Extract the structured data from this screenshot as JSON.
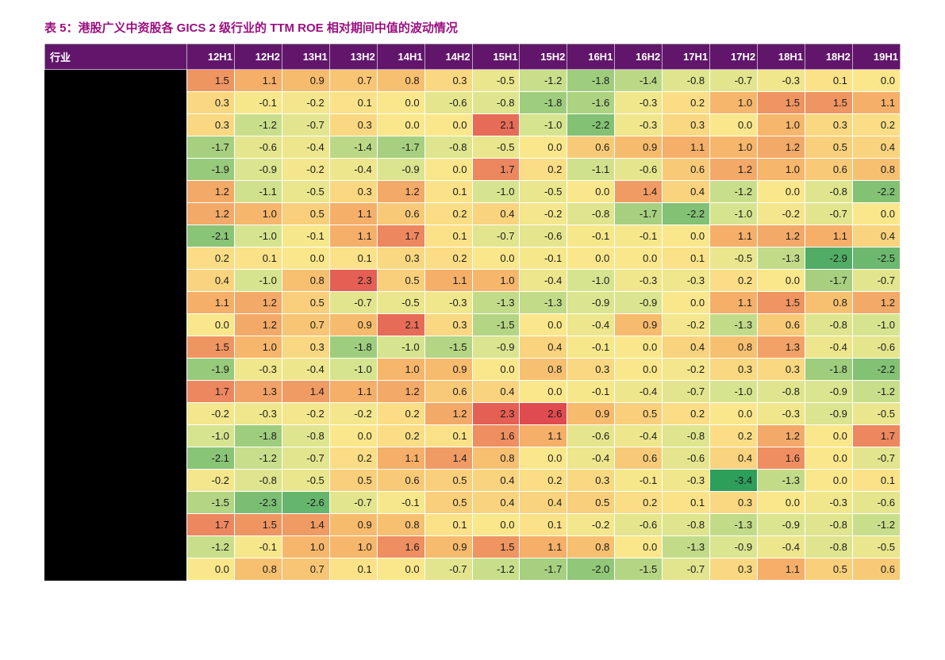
{
  "title": "表 5：港股广义中资股各 GICS 2 级行业的 TTM ROE 相对期间中值的波动情况",
  "row_header": "行业",
  "columns": [
    "12H1",
    "12H2",
    "13H1",
    "13H2",
    "14H1",
    "14H2",
    "15H1",
    "15H2",
    "16H1",
    "16H2",
    "17H1",
    "17H2",
    "18H1",
    "18H2",
    "19H1"
  ],
  "rows": [
    [
      1.5,
      1.1,
      0.9,
      0.7,
      0.8,
      0.3,
      -0.5,
      -1.2,
      -1.8,
      -1.4,
      -0.8,
      -0.7,
      -0.3,
      0.1,
      0.0
    ],
    [
      0.3,
      -0.1,
      -0.2,
      0.1,
      0.0,
      -0.6,
      -0.8,
      -1.8,
      -1.6,
      -0.3,
      0.2,
      1.0,
      1.5,
      1.5,
      1.1
    ],
    [
      0.3,
      -1.2,
      -0.7,
      0.3,
      0.0,
      0.0,
      2.1,
      -1.0,
      -2.2,
      -0.3,
      0.3,
      0.0,
      1.0,
      0.3,
      0.2
    ],
    [
      -1.7,
      -0.6,
      -0.4,
      -1.4,
      -1.7,
      -0.8,
      -0.5,
      0.0,
      0.6,
      0.9,
      1.1,
      1.0,
      1.2,
      0.5,
      0.4
    ],
    [
      -1.9,
      -0.9,
      -0.2,
      -0.4,
      -0.9,
      0.0,
      1.7,
      0.2,
      -1.1,
      -0.6,
      0.6,
      1.2,
      1.0,
      0.6,
      0.8
    ],
    [
      1.2,
      -1.1,
      -0.5,
      0.3,
      1.2,
      0.1,
      -1.0,
      -0.5,
      0.0,
      1.4,
      0.4,
      -1.2,
      0.0,
      -0.8,
      -2.2
    ],
    [
      1.2,
      1.0,
      0.5,
      1.1,
      0.6,
      0.2,
      0.4,
      -0.2,
      -0.8,
      -1.7,
      -2.2,
      -1.0,
      -0.2,
      -0.7,
      0.0
    ],
    [
      -2.1,
      -1.0,
      -0.1,
      1.1,
      1.7,
      0.1,
      -0.7,
      -0.6,
      -0.1,
      -0.1,
      0.0,
      1.1,
      1.2,
      1.1,
      0.4
    ],
    [
      0.2,
      0.1,
      0.0,
      0.1,
      0.3,
      0.2,
      0.0,
      -0.1,
      0.0,
      0.0,
      0.1,
      -0.5,
      -1.3,
      -2.9,
      -2.5
    ],
    [
      0.4,
      -1.0,
      0.8,
      2.3,
      0.5,
      1.1,
      1.0,
      -0.4,
      -1.0,
      -0.3,
      -0.3,
      0.2,
      0.0,
      -1.7,
      -0.7
    ],
    [
      1.1,
      1.2,
      0.5,
      -0.7,
      -0.5,
      -0.3,
      -1.3,
      -1.3,
      -0.9,
      -0.9,
      0.0,
      1.1,
      1.5,
      0.8,
      1.2
    ],
    [
      0.0,
      1.2,
      0.7,
      0.9,
      2.1,
      0.3,
      -1.5,
      0.0,
      -0.4,
      0.9,
      -0.2,
      -1.3,
      0.6,
      -0.8,
      -1.0
    ],
    [
      1.5,
      1.0,
      0.3,
      -1.8,
      -1.0,
      -1.5,
      -0.9,
      0.4,
      -0.1,
      0.0,
      0.4,
      0.8,
      1.3,
      -0.4,
      -0.6
    ],
    [
      -1.9,
      -0.3,
      -0.4,
      -1.0,
      1.0,
      0.9,
      0.0,
      0.8,
      0.3,
      0.0,
      -0.2,
      0.3,
      0.3,
      -1.8,
      -2.2
    ],
    [
      1.7,
      1.3,
      1.4,
      1.1,
      1.2,
      0.6,
      0.4,
      0.0,
      -0.1,
      -0.4,
      -0.7,
      -1.0,
      -0.8,
      -0.9,
      -1.2
    ],
    [
      -0.2,
      -0.3,
      -0.2,
      -0.2,
      0.2,
      1.2,
      2.3,
      2.6,
      0.9,
      0.5,
      0.2,
      0.0,
      -0.3,
      -0.9,
      -0.5
    ],
    [
      -1.0,
      -1.8,
      -0.8,
      0.0,
      0.2,
      0.1,
      1.6,
      1.1,
      -0.6,
      -0.4,
      -0.8,
      0.2,
      1.2,
      0.0,
      1.7
    ],
    [
      -2.1,
      -1.2,
      -0.7,
      0.2,
      1.1,
      1.4,
      0.8,
      0.0,
      -0.4,
      0.6,
      -0.6,
      0.4,
      1.6,
      0.0,
      -0.7
    ],
    [
      -0.2,
      -0.8,
      -0.5,
      0.5,
      0.6,
      0.5,
      0.4,
      0.2,
      0.3,
      -0.1,
      -0.3,
      -3.4,
      -1.3,
      0.0,
      0.1
    ],
    [
      -1.5,
      -2.3,
      -2.6,
      -0.7,
      -0.1,
      0.5,
      0.4,
      0.4,
      0.5,
      0.2,
      0.1,
      0.3,
      0.0,
      -0.3,
      -0.6
    ],
    [
      1.7,
      1.5,
      1.4,
      0.9,
      0.8,
      0.1,
      0.0,
      0.1,
      -0.2,
      -0.6,
      -0.8,
      -1.3,
      -0.9,
      -0.8,
      -1.2
    ],
    [
      -1.2,
      -0.1,
      1.0,
      1.0,
      1.6,
      0.9,
      1.5,
      1.1,
      0.8,
      0.0,
      -1.3,
      -0.9,
      -0.4,
      -0.8,
      -0.5
    ],
    [
      0.0,
      0.8,
      0.7,
      0.1,
      0.0,
      -0.7,
      -1.2,
      -1.7,
      -2.0,
      -1.5,
      -0.7,
      0.3,
      1.1,
      0.5,
      0.6
    ]
  ],
  "style": {
    "type": "heatmap-table",
    "title_color": "#9b0f7f",
    "header_bg": "#61166b",
    "header_text_color": "#ffffff",
    "rowlabel_bg": "#000000",
    "cell_fontsize": 13,
    "cell_text_color": "#1a1a1a",
    "cell_border_color": "#ffffff",
    "title_fontsize": 15,
    "header_fontsize": 13,
    "colorscale": {
      "min_value": -3.4,
      "mid_value": 0.0,
      "max_value": 2.6,
      "min_color": "#2e9e5b",
      "neg_mid_color": "#d7e48f",
      "zero_color": "#fbe78b",
      "pos_mid_color": "#f6b66b",
      "max_color": "#e04b4f"
    }
  }
}
